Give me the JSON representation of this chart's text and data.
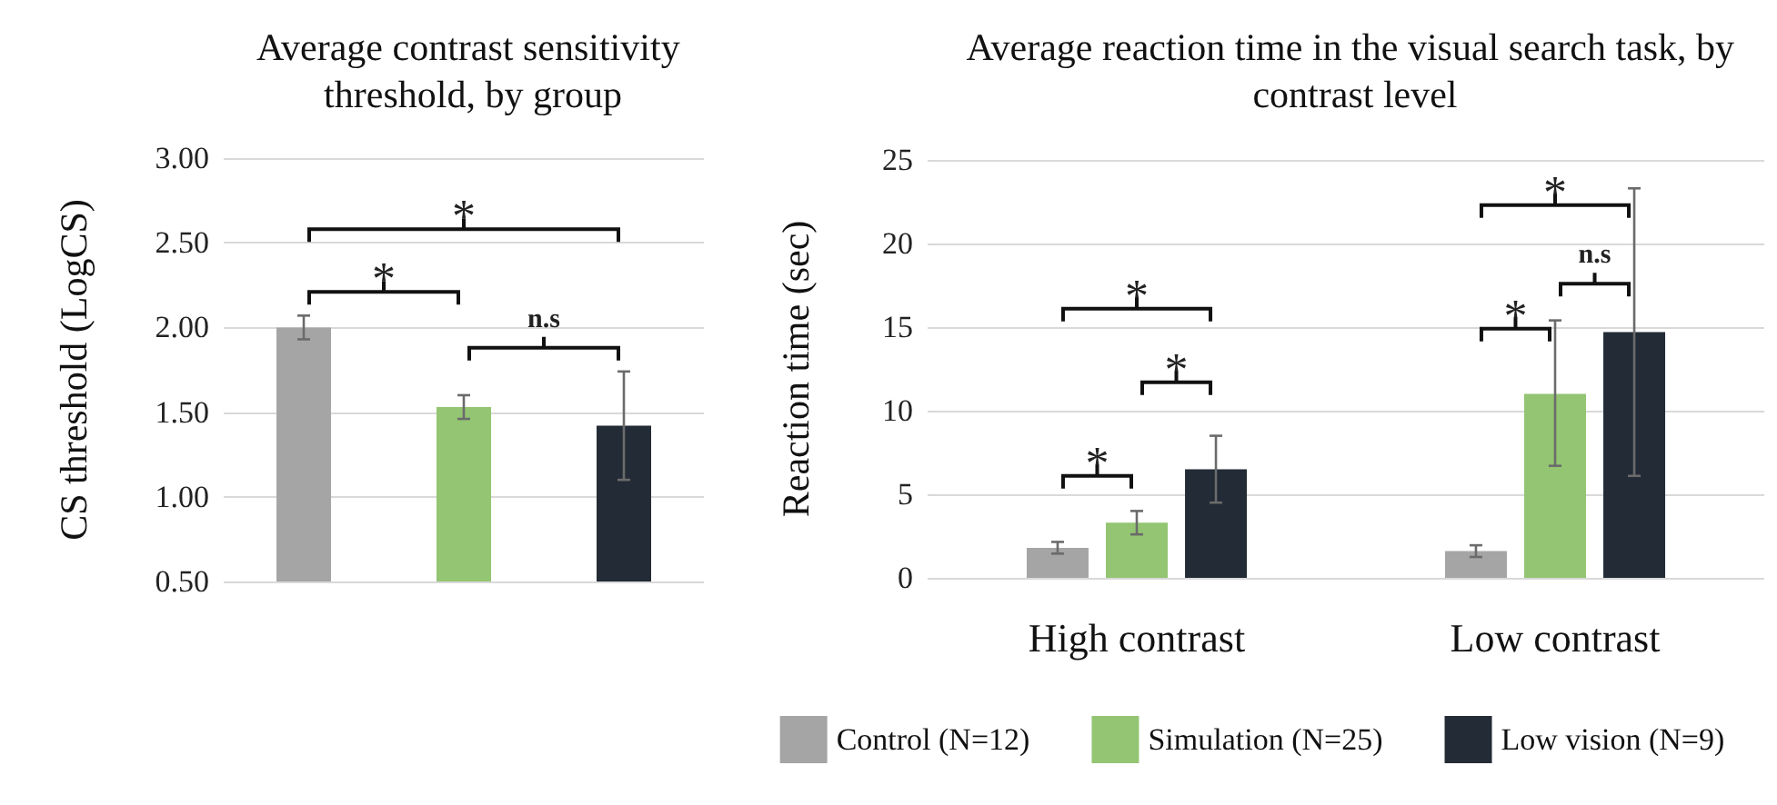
{
  "chart_data": [
    {
      "type": "bar",
      "title": "Average contrast sensitivity threshold, by group",
      "ylabel": "CS threshold (LogCS)",
      "categories": [
        null,
        null,
        null
      ],
      "values": [
        2.0,
        1.53,
        1.42
      ],
      "colors": [
        "#a5a5a5",
        "#93c572",
        "#232b36"
      ],
      "errors": [
        0.07,
        0.07,
        0.32
      ],
      "ylim": [
        0.5,
        3
      ],
      "yticks": [
        {
          "value": 0.5,
          "label": "0.50"
        },
        {
          "value": 1,
          "label": "1.00"
        },
        {
          "value": 1.5,
          "label": "1.50"
        },
        {
          "value": 2,
          "label": "2.00"
        },
        {
          "value": 2.5,
          "label": "2.50"
        },
        {
          "value": 3,
          "label": "3.00"
        }
      ],
      "grid": "y",
      "annotations": [
        "*",
        "*",
        "n.s"
      ]
    },
    {
      "type": "bar",
      "title": "Average reaction time in the visual search task, by contrast level",
      "ylabel": "Reaction time (sec)",
      "categories": [
        "High contrast",
        "Low contrast"
      ],
      "series": [
        {
          "name": "Control (N=12)",
          "color": "#a5a5a5",
          "values": [
            1.8,
            1.6
          ],
          "errors": [
            0.35,
            0.35
          ]
        },
        {
          "name": "Simulation (N=25)",
          "color": "#93c572",
          "values": [
            3.3,
            11.0
          ],
          "errors": [
            0.7,
            [
              6.7,
              15.4
            ]
          ]
        },
        {
          "name": "Low vision (N=9)",
          "color": "#232b36",
          "values": [
            6.5,
            14.7
          ],
          "errors": [
            2.0,
            [
              6.1,
              23.3
            ]
          ]
        }
      ],
      "ylim": [
        0,
        25
      ],
      "yticks": [
        0,
        5,
        10,
        15,
        20,
        25
      ],
      "grid": "y",
      "legend": "bottom",
      "annotations": [
        "*",
        "*",
        "*",
        "*",
        "n.s",
        "*"
      ]
    }
  ]
}
